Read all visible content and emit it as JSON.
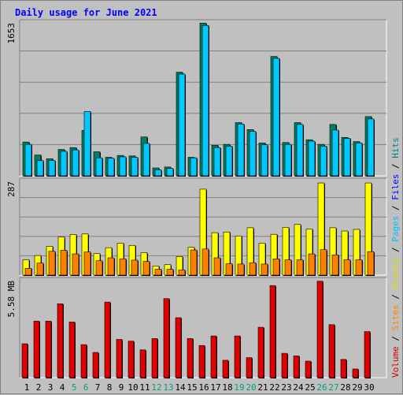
{
  "title": "Daily usage for June 2021",
  "right_legend": [
    {
      "text": "Volume",
      "color": "#cc0000"
    },
    {
      "text": " / ",
      "color": "#000000"
    },
    {
      "text": "Sites",
      "color": "#ff8000"
    },
    {
      "text": " / ",
      "color": "#000000"
    },
    {
      "text": "Visits",
      "color": "#e0e000"
    },
    {
      "text": " / ",
      "color": "#000000"
    },
    {
      "text": "Pages",
      "color": "#00c0ff"
    },
    {
      "text": " / ",
      "color": "#000000"
    },
    {
      "text": "Files",
      "color": "#0000ff"
    },
    {
      "text": " / ",
      "color": "#000000"
    },
    {
      "text": "Hits",
      "color": "#008080"
    }
  ],
  "chart_data": [
    {
      "type": "bar",
      "panel": "hits-pages",
      "max_label": "1653",
      "ylim": [
        0,
        1653
      ],
      "grid": true,
      "categories": [
        "1",
        "2",
        "3",
        "4",
        "5",
        "6",
        "7",
        "8",
        "9",
        "10",
        "11",
        "12",
        "13",
        "14",
        "15",
        "16",
        "17",
        "18",
        "19",
        "20",
        "21",
        "22",
        "23",
        "24",
        "25",
        "26",
        "27",
        "28",
        "29",
        "30"
      ],
      "weekend_days": [
        "5",
        "6",
        "12",
        "13",
        "19",
        "20",
        "26",
        "27"
      ],
      "series": [
        {
          "name": "Hits",
          "color": "#008060",
          "values": [
            365,
            225,
            185,
            285,
            305,
            490,
            260,
            200,
            220,
            215,
            420,
            85,
            95,
            1120,
            200,
            1650,
            330,
            340,
            575,
            500,
            355,
            1290,
            360,
            575,
            390,
            340,
            555,
            415,
            370,
            640
          ]
        },
        {
          "name": "Pages",
          "color": "#00c8ff",
          "values": [
            340,
            165,
            165,
            265,
            280,
            695,
            195,
            190,
            205,
            200,
            350,
            65,
            80,
            1100,
            195,
            1625,
            305,
            320,
            560,
            480,
            335,
            1270,
            340,
            555,
            375,
            320,
            495,
            405,
            355,
            615
          ]
        }
      ]
    },
    {
      "type": "bar",
      "panel": "visits-sites",
      "max_label": "287",
      "ylim": [
        0,
        287
      ],
      "grid": true,
      "series": [
        {
          "name": "Visits",
          "color": "#ffff00",
          "values": [
            47,
            60,
            88,
            117,
            124,
            126,
            66,
            84,
            98,
            91,
            69,
            28,
            32,
            57,
            85,
            263,
            130,
            132,
            120,
            145,
            98,
            125,
            146,
            155,
            141,
            282,
            145,
            135,
            140,
            282
          ]
        },
        {
          "name": "Sites",
          "color": "#ff8000",
          "values": [
            21,
            37,
            73,
            76,
            65,
            71,
            44,
            53,
            50,
            46,
            42,
            18,
            18,
            16,
            77,
            80,
            53,
            35,
            34,
            38,
            34,
            50,
            47,
            47,
            65,
            78,
            62,
            47,
            47,
            72
          ]
        }
      ]
    },
    {
      "type": "bar",
      "panel": "volume",
      "max_label": "5.58 MB",
      "ylim": [
        0,
        5.58
      ],
      "series": [
        {
          "name": "Volume",
          "color": "#e00000",
          "values": [
            1.95,
            3.25,
            3.25,
            4.25,
            3.2,
            1.9,
            1.45,
            4.35,
            2.2,
            2.1,
            1.6,
            2.25,
            4.55,
            3.45,
            2.25,
            1.85,
            2.4,
            1.0,
            2.4,
            1.15,
            2.9,
            5.3,
            1.4,
            1.25,
            0.95,
            5.55,
            3.05,
            1.05,
            0.5,
            2.65
          ]
        }
      ]
    }
  ]
}
